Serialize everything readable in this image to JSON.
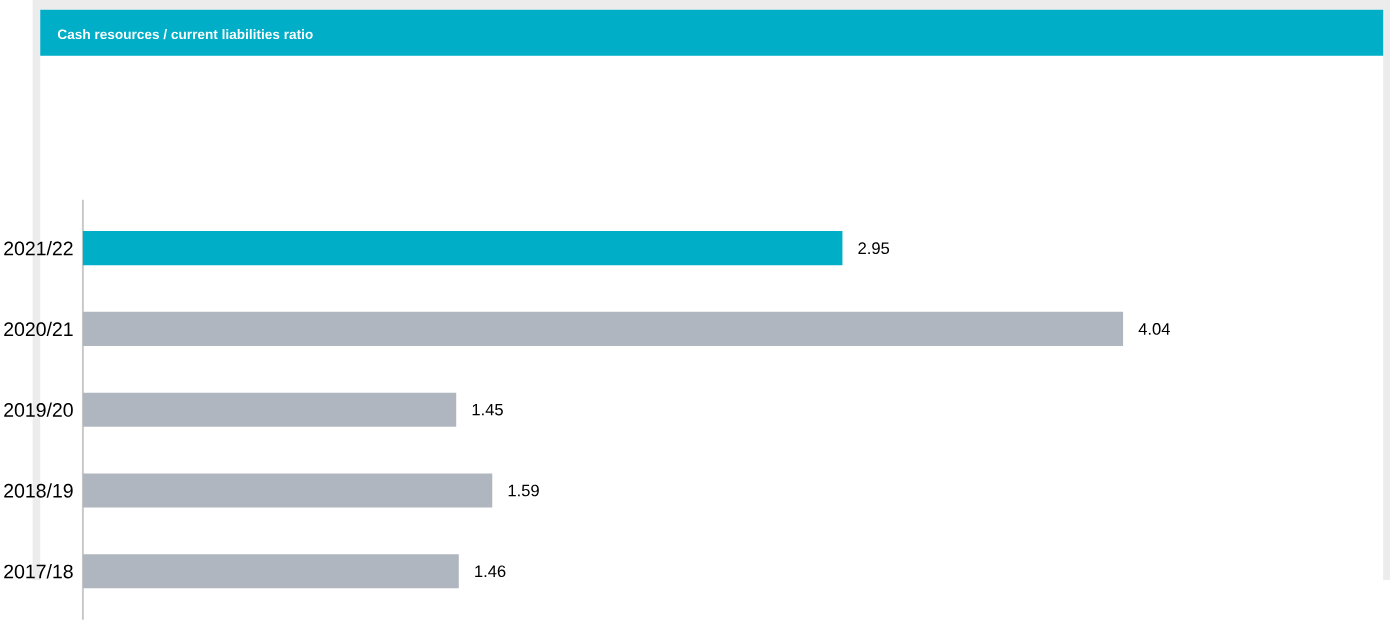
{
  "chart_data": {
    "type": "bar",
    "orientation": "horizontal",
    "title": "Cash resources / current liabilities ratio",
    "categories": [
      "2021/22",
      "2020/21",
      "2019/20",
      "2018/19",
      "2017/18"
    ],
    "values": [
      2.95,
      4.04,
      1.45,
      1.59,
      1.46
    ],
    "colors": [
      "#00aec7",
      "#b0b6bf",
      "#b0b6bf",
      "#b0b6bf",
      "#b0b6bf"
    ],
    "data_labels": true
  }
}
